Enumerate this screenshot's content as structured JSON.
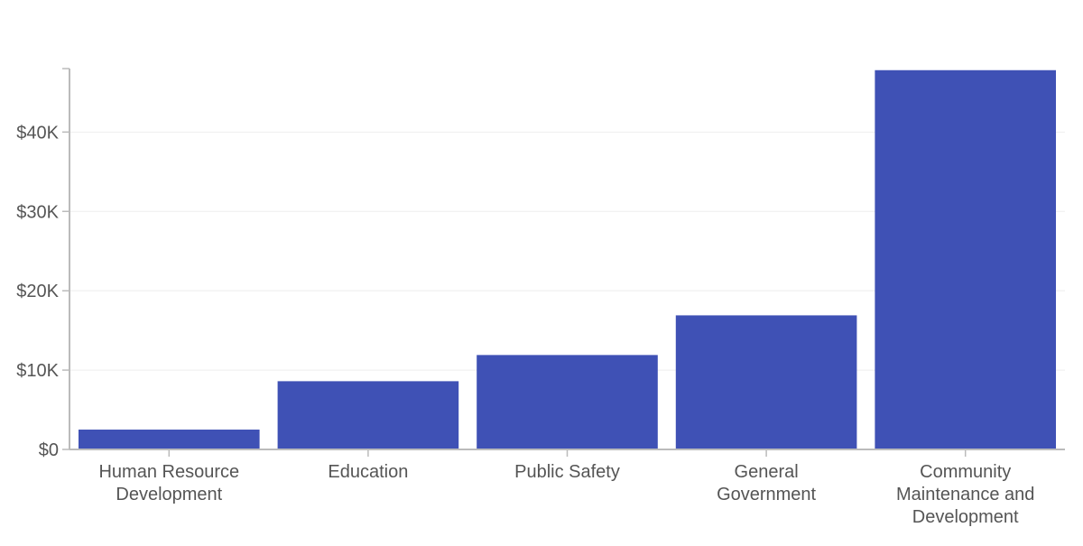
{
  "chart_data": {
    "type": "bar",
    "title": "",
    "xlabel": "",
    "ylabel": "",
    "categories": [
      [
        "Human Resource",
        "Development"
      ],
      [
        "Education"
      ],
      [
        "Public Safety"
      ],
      [
        "General",
        "Government"
      ],
      [
        "Community",
        "Maintenance and",
        "Development"
      ]
    ],
    "values": [
      2500,
      8600,
      11900,
      16900,
      47800
    ],
    "ylim": [
      0,
      48000
    ],
    "yticks": [
      0,
      10000,
      20000,
      30000,
      40000
    ],
    "ytick_labels": [
      "$0",
      "$10K",
      "$20K",
      "$30K",
      "$40K"
    ],
    "grid": true,
    "bar_color": "#3f51b5"
  }
}
